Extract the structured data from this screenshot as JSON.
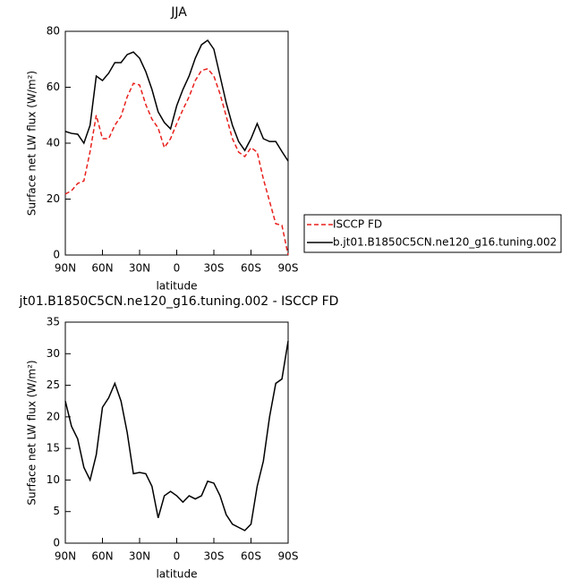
{
  "chart_data": [
    {
      "type": "line",
      "title": "JJA",
      "xlabel": "latitude",
      "ylabel": "Surface net LW flux (W/m²)",
      "x": [
        90,
        85,
        80,
        75,
        70,
        65,
        60,
        55,
        50,
        45,
        40,
        35,
        30,
        25,
        20,
        15,
        10,
        5,
        0,
        -5,
        -10,
        -15,
        -20,
        -25,
        -30,
        -35,
        -40,
        -45,
        -50,
        -55,
        -60,
        -65,
        -70,
        -75,
        -80,
        -85,
        -90
      ],
      "xlim": [
        90,
        -90
      ],
      "xticks": [
        {
          "value": 90,
          "label": "90N"
        },
        {
          "value": 60,
          "label": "60N"
        },
        {
          "value": 30,
          "label": "30N"
        },
        0,
        {
          "value": -30,
          "label": "30S"
        },
        {
          "value": -60,
          "label": "60S"
        },
        {
          "value": -90,
          "label": "90S"
        }
      ],
      "ylim": [
        0,
        80
      ],
      "yticks": [
        0,
        20,
        40,
        60,
        80
      ],
      "legend": "right",
      "series": [
        {
          "name": "ISCCP FD",
          "color": "#e8201c",
          "style": "dashed",
          "values": [
            21.8,
            23,
            25.6,
            26.5,
            37,
            50,
            41.6,
            41.6,
            46.4,
            49.6,
            56.6,
            61.4,
            60.8,
            53.8,
            48.6,
            45.4,
            38.4,
            41.6,
            47,
            52,
            56.6,
            62.4,
            66,
            66.6,
            64,
            57.6,
            49.6,
            41.6,
            36.8,
            35.2,
            38.4,
            36.8,
            27.2,
            19.2,
            11.2,
            10.6,
            0
          ]
        },
        {
          "name": "b.jt01.B1850C5CN.ne120_g16.tuning.002",
          "color": "#000000",
          "style": "solid",
          "values": [
            44.2,
            43.5,
            43.2,
            40,
            46.4,
            64,
            62.4,
            65,
            68.8,
            68.8,
            71.7,
            72.6,
            70.4,
            65.6,
            59.2,
            51.2,
            47.4,
            45.1,
            53.4,
            59.2,
            64,
            70.4,
            75.2,
            76.8,
            73.6,
            64,
            54.4,
            46.4,
            40.6,
            37.4,
            41.6,
            47,
            41.6,
            40.6,
            40.6,
            37,
            33.6
          ]
        }
      ]
    },
    {
      "type": "line",
      "title": "jt01.B1850C5CN.ne120_g16.tuning.002 - ISCCP FD",
      "xlabel": "latitude",
      "ylabel": "Surface net LW flux (W/m²)",
      "x": [
        90,
        85,
        80,
        75,
        70,
        65,
        60,
        55,
        50,
        45,
        40,
        35,
        30,
        25,
        20,
        15,
        10,
        5,
        0,
        -5,
        -10,
        -15,
        -20,
        -25,
        -30,
        -35,
        -40,
        -45,
        -50,
        -55,
        -60,
        -65,
        -70,
        -75,
        -80,
        -85,
        -90
      ],
      "xlim": [
        90,
        -90
      ],
      "xticks": [
        {
          "value": 90,
          "label": "90N"
        },
        {
          "value": 60,
          "label": "60N"
        },
        {
          "value": 30,
          "label": "30N"
        },
        0,
        {
          "value": -30,
          "label": "30S"
        },
        {
          "value": -60,
          "label": "60S"
        },
        {
          "value": -90,
          "label": "90S"
        }
      ],
      "ylim": [
        0,
        35
      ],
      "yticks": [
        0,
        5,
        10,
        15,
        20,
        25,
        30,
        35
      ],
      "series": [
        {
          "color": "#000000",
          "style": "solid",
          "values": [
            22.5,
            18.5,
            16.5,
            12,
            10,
            14,
            21.5,
            23,
            25.3,
            22.5,
            17.5,
            11,
            11.2,
            11,
            9,
            4,
            7.5,
            8.2,
            7.5,
            6.5,
            7.5,
            7,
            7.5,
            9.8,
            9.5,
            7.5,
            4.5,
            3,
            2.5,
            2,
            3,
            9,
            13,
            20,
            25.3,
            26,
            32
          ]
        }
      ]
    }
  ]
}
